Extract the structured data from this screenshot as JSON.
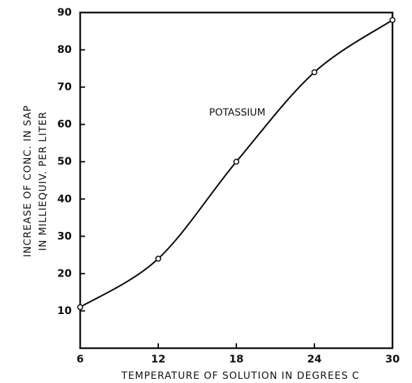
{
  "chart_data": {
    "type": "line",
    "annotation": "POTASSIUM",
    "x_label": "TEMPERATURE OF SOLUTION IN DEGREES C",
    "y_label": [
      "INCREASE OF CONC. IN SAP",
      "IN MILLIEQUIV. PER LITER"
    ],
    "x": [
      6,
      12,
      18,
      24,
      30
    ],
    "series": [
      {
        "name": "POTASSIUM",
        "color": "#111111",
        "values": [
          11,
          24,
          50,
          74,
          88
        ]
      }
    ],
    "xlim": [
      6,
      30
    ],
    "xticks": [
      6,
      12,
      18,
      24,
      30
    ],
    "ylim": [
      0,
      90
    ],
    "yticks": [
      10,
      20,
      30,
      40,
      50,
      60,
      70,
      80,
      90
    ]
  }
}
